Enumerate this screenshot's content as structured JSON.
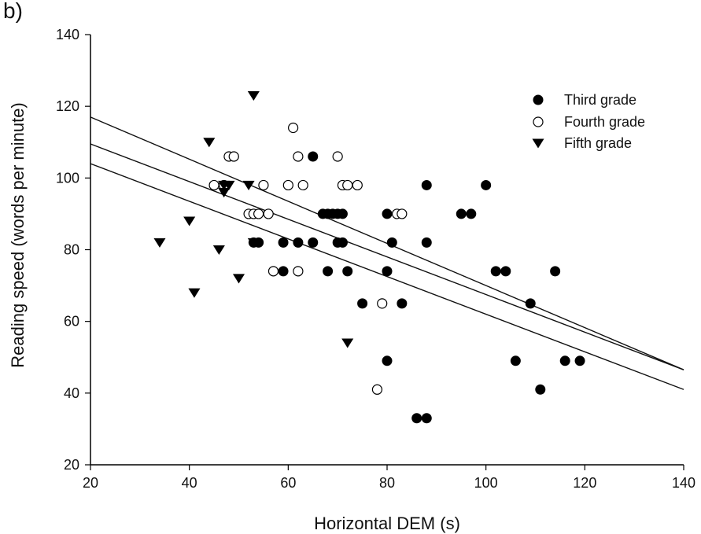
{
  "panel_label": "b)",
  "chart_data": {
    "type": "scatter",
    "xlabel": "Horizontal DEM (s)",
    "ylabel": "Reading speed (words per minute)",
    "xlim": [
      20,
      140
    ],
    "ylim": [
      20,
      140
    ],
    "x_ticks": [
      20,
      40,
      60,
      80,
      100,
      120,
      140
    ],
    "y_ticks": [
      20,
      40,
      60,
      80,
      100,
      120,
      140
    ],
    "grid": false,
    "legend_position": "top-right",
    "series": [
      {
        "name": "Third grade",
        "marker": "filled-circle",
        "color": "#000000",
        "points": [
          [
            47,
            98
          ],
          [
            49,
            106
          ],
          [
            53,
            82
          ],
          [
            54,
            82
          ],
          [
            59,
            82
          ],
          [
            59,
            74
          ],
          [
            62,
            82
          ],
          [
            65,
            106
          ],
          [
            65,
            82
          ],
          [
            67,
            90
          ],
          [
            68,
            90
          ],
          [
            68,
            74
          ],
          [
            69,
            90
          ],
          [
            70,
            90
          ],
          [
            71,
            90
          ],
          [
            70,
            82
          ],
          [
            71,
            82
          ],
          [
            72,
            74
          ],
          [
            75,
            65
          ],
          [
            80,
            90
          ],
          [
            81,
            82
          ],
          [
            80,
            74
          ],
          [
            80,
            49
          ],
          [
            83,
            65
          ],
          [
            86,
            33
          ],
          [
            88,
            33
          ],
          [
            88,
            98
          ],
          [
            88,
            82
          ],
          [
            95,
            90
          ],
          [
            97,
            90
          ],
          [
            100,
            98
          ],
          [
            102,
            74
          ],
          [
            104,
            74
          ],
          [
            106,
            49
          ],
          [
            109,
            65
          ],
          [
            111,
            41
          ],
          [
            114,
            74
          ],
          [
            116,
            49
          ],
          [
            119,
            49
          ]
        ]
      },
      {
        "name": "Fourth grade",
        "marker": "open-circle",
        "color": "#000000",
        "points": [
          [
            45,
            98
          ],
          [
            47,
            98
          ],
          [
            48,
            106
          ],
          [
            49,
            106
          ],
          [
            52,
            90
          ],
          [
            53,
            90
          ],
          [
            54,
            90
          ],
          [
            55,
            98
          ],
          [
            56,
            90
          ],
          [
            57,
            74
          ],
          [
            60,
            98
          ],
          [
            61,
            114
          ],
          [
            62,
            106
          ],
          [
            62,
            74
          ],
          [
            63,
            98
          ],
          [
            70,
            106
          ],
          [
            71,
            98
          ],
          [
            72,
            98
          ],
          [
            74,
            98
          ],
          [
            79,
            65
          ],
          [
            78,
            41
          ],
          [
            82,
            90
          ],
          [
            83,
            90
          ]
        ]
      },
      {
        "name": "Fifth grade",
        "marker": "filled-triangle-down",
        "color": "#000000",
        "points": [
          [
            34,
            82
          ],
          [
            40,
            88
          ],
          [
            41,
            68
          ],
          [
            44,
            110
          ],
          [
            46,
            80
          ],
          [
            47,
            96
          ],
          [
            47,
            98
          ],
          [
            48,
            98
          ],
          [
            50,
            72
          ],
          [
            52,
            98
          ],
          [
            53,
            123
          ],
          [
            53,
            82
          ],
          [
            72,
            54
          ]
        ]
      }
    ],
    "lines": [
      {
        "x": [
          20,
          140
        ],
        "y": [
          117,
          46.5
        ]
      },
      {
        "x": [
          20,
          140
        ],
        "y": [
          109.5,
          46.5
        ]
      },
      {
        "x": [
          20,
          140
        ],
        "y": [
          104,
          41
        ]
      }
    ]
  }
}
